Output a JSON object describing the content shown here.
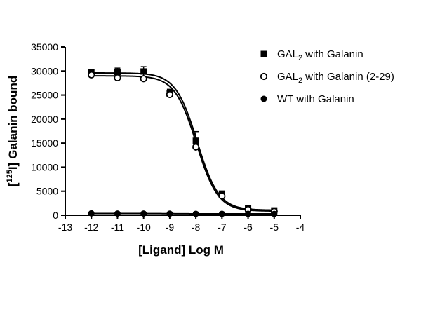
{
  "chart_data": {
    "type": "scatter",
    "title": "",
    "xlabel": "[Ligand] Log M",
    "ylabel": "Galanin bound",
    "ylabel_prefix": "[",
    "ylabel_superscript": "125",
    "ylabel_element": "I]",
    "xlim": [
      -13,
      -4
    ],
    "ylim": [
      0,
      35000
    ],
    "x_ticks": [
      -13,
      -12,
      -11,
      -10,
      -9,
      -8,
      -7,
      -6,
      -5,
      -4
    ],
    "x_tick_labels": [
      "-13",
      "-12",
      "-11",
      "-10",
      "-9",
      "-8",
      "-7",
      "-6",
      "-5",
      "-4"
    ],
    "y_ticks": [
      0,
      5000,
      10000,
      15000,
      20000,
      25000,
      30000,
      35000
    ],
    "y_tick_labels": [
      "0",
      "5000",
      "10000",
      "15000",
      "20000",
      "25000",
      "30000",
      "35000"
    ],
    "grid": false,
    "legend_position": "top-right",
    "series": [
      {
        "name": "with Galanin",
        "name_prefix": "GAL",
        "name_subscript": "2",
        "marker": "square-filled",
        "x": [
          -12,
          -11,
          -10,
          -9,
          -8,
          -7,
          -6,
          -5
        ],
        "y": [
          29800,
          29800,
          29900,
          25300,
          15500,
          4500,
          1400,
          1000
        ],
        "error": [
          300,
          800,
          1000,
          900,
          1900,
          400,
          300,
          300
        ],
        "fit": {
          "top": 29600,
          "bottom": 1050,
          "logEC50": -7.95,
          "hill": -1.05
        }
      },
      {
        "name": "with Galanin (2-29)",
        "name_prefix": "GAL",
        "name_subscript": "2",
        "marker": "circle-open",
        "x": [
          -12,
          -11,
          -10,
          -9,
          -8,
          -7,
          -6,
          -5
        ],
        "y": [
          29200,
          28600,
          28400,
          25100,
          14200,
          4000,
          1200,
          800
        ],
        "error": [
          200,
          400,
          400,
          600,
          800,
          400,
          300,
          200
        ],
        "fit": {
          "top": 29000,
          "bottom": 850,
          "logEC50": -7.98,
          "hill": -1.05
        }
      },
      {
        "name": "WT with Galanin",
        "name_prefix": "",
        "name_subscript": "",
        "marker": "circle-filled",
        "x": [
          -12,
          -11,
          -10,
          -9,
          -8,
          -7,
          -6,
          -5
        ],
        "y": [
          400,
          350,
          350,
          320,
          300,
          300,
          300,
          280
        ],
        "error": [
          0,
          0,
          0,
          0,
          0,
          0,
          0,
          0
        ],
        "fit": {
          "top": 360,
          "bottom": 290,
          "logEC50": -9.0,
          "hill": -1.0
        }
      }
    ]
  }
}
